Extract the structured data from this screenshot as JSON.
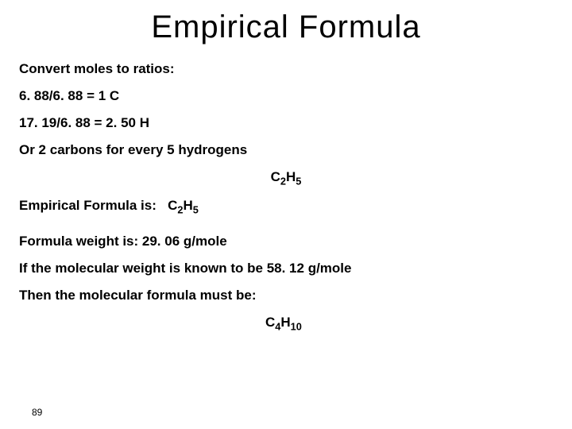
{
  "title": "Empirical  Formula",
  "lines": {
    "convert": "Convert moles to ratios:",
    "ratio1": "6. 88/6. 88 = 1 C",
    "ratio2": "17. 19/6. 88 = 2. 50 H",
    "or2c5h": "Or 2 carbons for every 5 hydrogens",
    "empFormulaLabel": "Empirical Formula is:",
    "fw": "Formula weight is:  29. 06 g/mole",
    "ifMw": "If the molecular weight is known to be 58. 12 g/mole",
    "thenMf": "Then the molecular formula must be:"
  },
  "formula1": {
    "c": "C",
    "c_sub": "2",
    "h": "H",
    "h_sub": "5"
  },
  "formula2": {
    "c": "C",
    "c_sub": "2",
    "h": "H",
    "h_sub": "5"
  },
  "formula3": {
    "c": "C",
    "c_sub": "4",
    "h": "H",
    "h_sub": "10"
  },
  "pageNumber": "89",
  "style": {
    "background_color": "#ffffff",
    "text_color": "#000000",
    "title_fontsize": 40,
    "body_fontsize": 17,
    "font_family": "Arial"
  }
}
